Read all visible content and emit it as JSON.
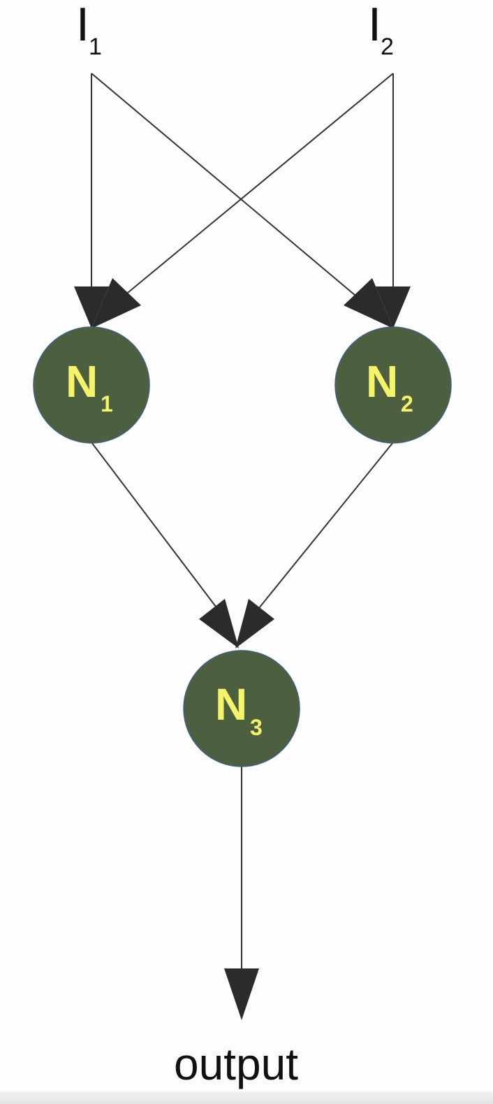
{
  "diagram": {
    "inputs": [
      {
        "id": "I1",
        "letter": "I",
        "sub": "1"
      },
      {
        "id": "I2",
        "letter": "I",
        "sub": "2"
      }
    ],
    "nodes": [
      {
        "id": "N1",
        "letter": "N",
        "sub": "1"
      },
      {
        "id": "N2",
        "letter": "N",
        "sub": "2"
      },
      {
        "id": "N3",
        "letter": "N",
        "sub": "3"
      }
    ],
    "output_label": "output",
    "edges": [
      {
        "from": "I1",
        "to": "N1"
      },
      {
        "from": "I1",
        "to": "N2"
      },
      {
        "from": "I2",
        "to": "N1"
      },
      {
        "from": "I2",
        "to": "N2"
      },
      {
        "from": "N1",
        "to": "N3"
      },
      {
        "from": "N2",
        "to": "N3"
      },
      {
        "from": "N3",
        "to": "output"
      }
    ],
    "colors": {
      "node_fill": "#4c6040",
      "node_text": "#f5f36a",
      "edge": "#333333",
      "arrowhead": "#2b2b2b"
    }
  }
}
